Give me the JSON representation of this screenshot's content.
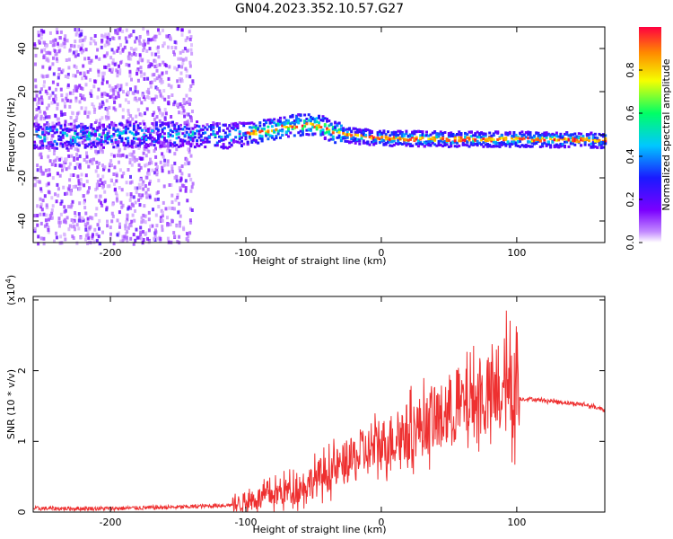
{
  "title": "GN04.2023.352.10.57.G27",
  "colors": {
    "snr_line": "#ee3030",
    "colormap": [
      "#ffffff",
      "#c38bff",
      "#7b00ff",
      "#1a1aff",
      "#00c8ff",
      "#00ff66",
      "#f5ff00",
      "#ff8a00",
      "#ff0040"
    ]
  },
  "chart_data": [
    {
      "type": "heatmap",
      "title": "",
      "xlabel": "Height of straight line (km)",
      "ylabel": "Frequency (Hz)",
      "xlim": [
        -257,
        165
      ],
      "ylim": [
        -50,
        50
      ],
      "xticks": [
        -200,
        -100,
        0,
        100
      ],
      "yticks": [
        -40,
        -20,
        0,
        20,
        40
      ],
      "xticklabels": [
        "-200",
        "-100",
        "0",
        "100"
      ],
      "yticklabels": [
        "-40",
        "-20",
        "0",
        "20",
        "40"
      ],
      "colorbar": {
        "label": "Normalized spectral amplitude",
        "range": [
          0,
          1
        ],
        "ticks": [
          "0.0",
          "0.2",
          "0.4",
          "0.6",
          "0.8"
        ],
        "tick_values": [
          0.0,
          0.2,
          0.4,
          0.6,
          0.8
        ]
      },
      "centerline": {
        "x": [
          -257,
          -150,
          -110,
          -90,
          -75,
          -55,
          -45,
          -35,
          -20,
          0,
          50,
          100,
          165
        ],
        "y": [
          0,
          1,
          0,
          2,
          4,
          5.5,
          4.5,
          1.5,
          0,
          -1,
          -1.5,
          -1.5,
          -2
        ]
      }
    },
    {
      "type": "line",
      "title": "",
      "xlabel": "Height of straight line (km)",
      "ylabel": "SNR (10 * v/v)",
      "multiplier": "(x10",
      "multiplier_exp": "4",
      "multiplier_close": ")",
      "xlim": [
        -257,
        165
      ],
      "ylim": [
        0,
        3.05
      ],
      "xticks": [
        -200,
        -100,
        0,
        100
      ],
      "yticks": [
        0,
        1,
        2,
        3
      ],
      "xticklabels": [
        "-200",
        "-100",
        "0",
        "100"
      ],
      "yticklabels": [
        "0",
        "1",
        "2",
        "3"
      ],
      "series": [
        {
          "values_note": "",
          "x": [
            -257,
            -200,
            -150,
            -110,
            -100,
            -80,
            -60,
            -40,
            -20,
            0,
            20,
            40,
            55,
            70,
            85,
            95,
            100,
            110,
            130,
            150,
            165
          ],
          "y": [
            0.05,
            0.05,
            0.07,
            0.1,
            0.15,
            0.25,
            0.35,
            0.55,
            0.75,
            0.95,
            1.15,
            1.3,
            1.45,
            1.6,
            1.6,
            1.7,
            1.6,
            1.6,
            1.56,
            1.52,
            1.45
          ]
        }
      ]
    }
  ]
}
